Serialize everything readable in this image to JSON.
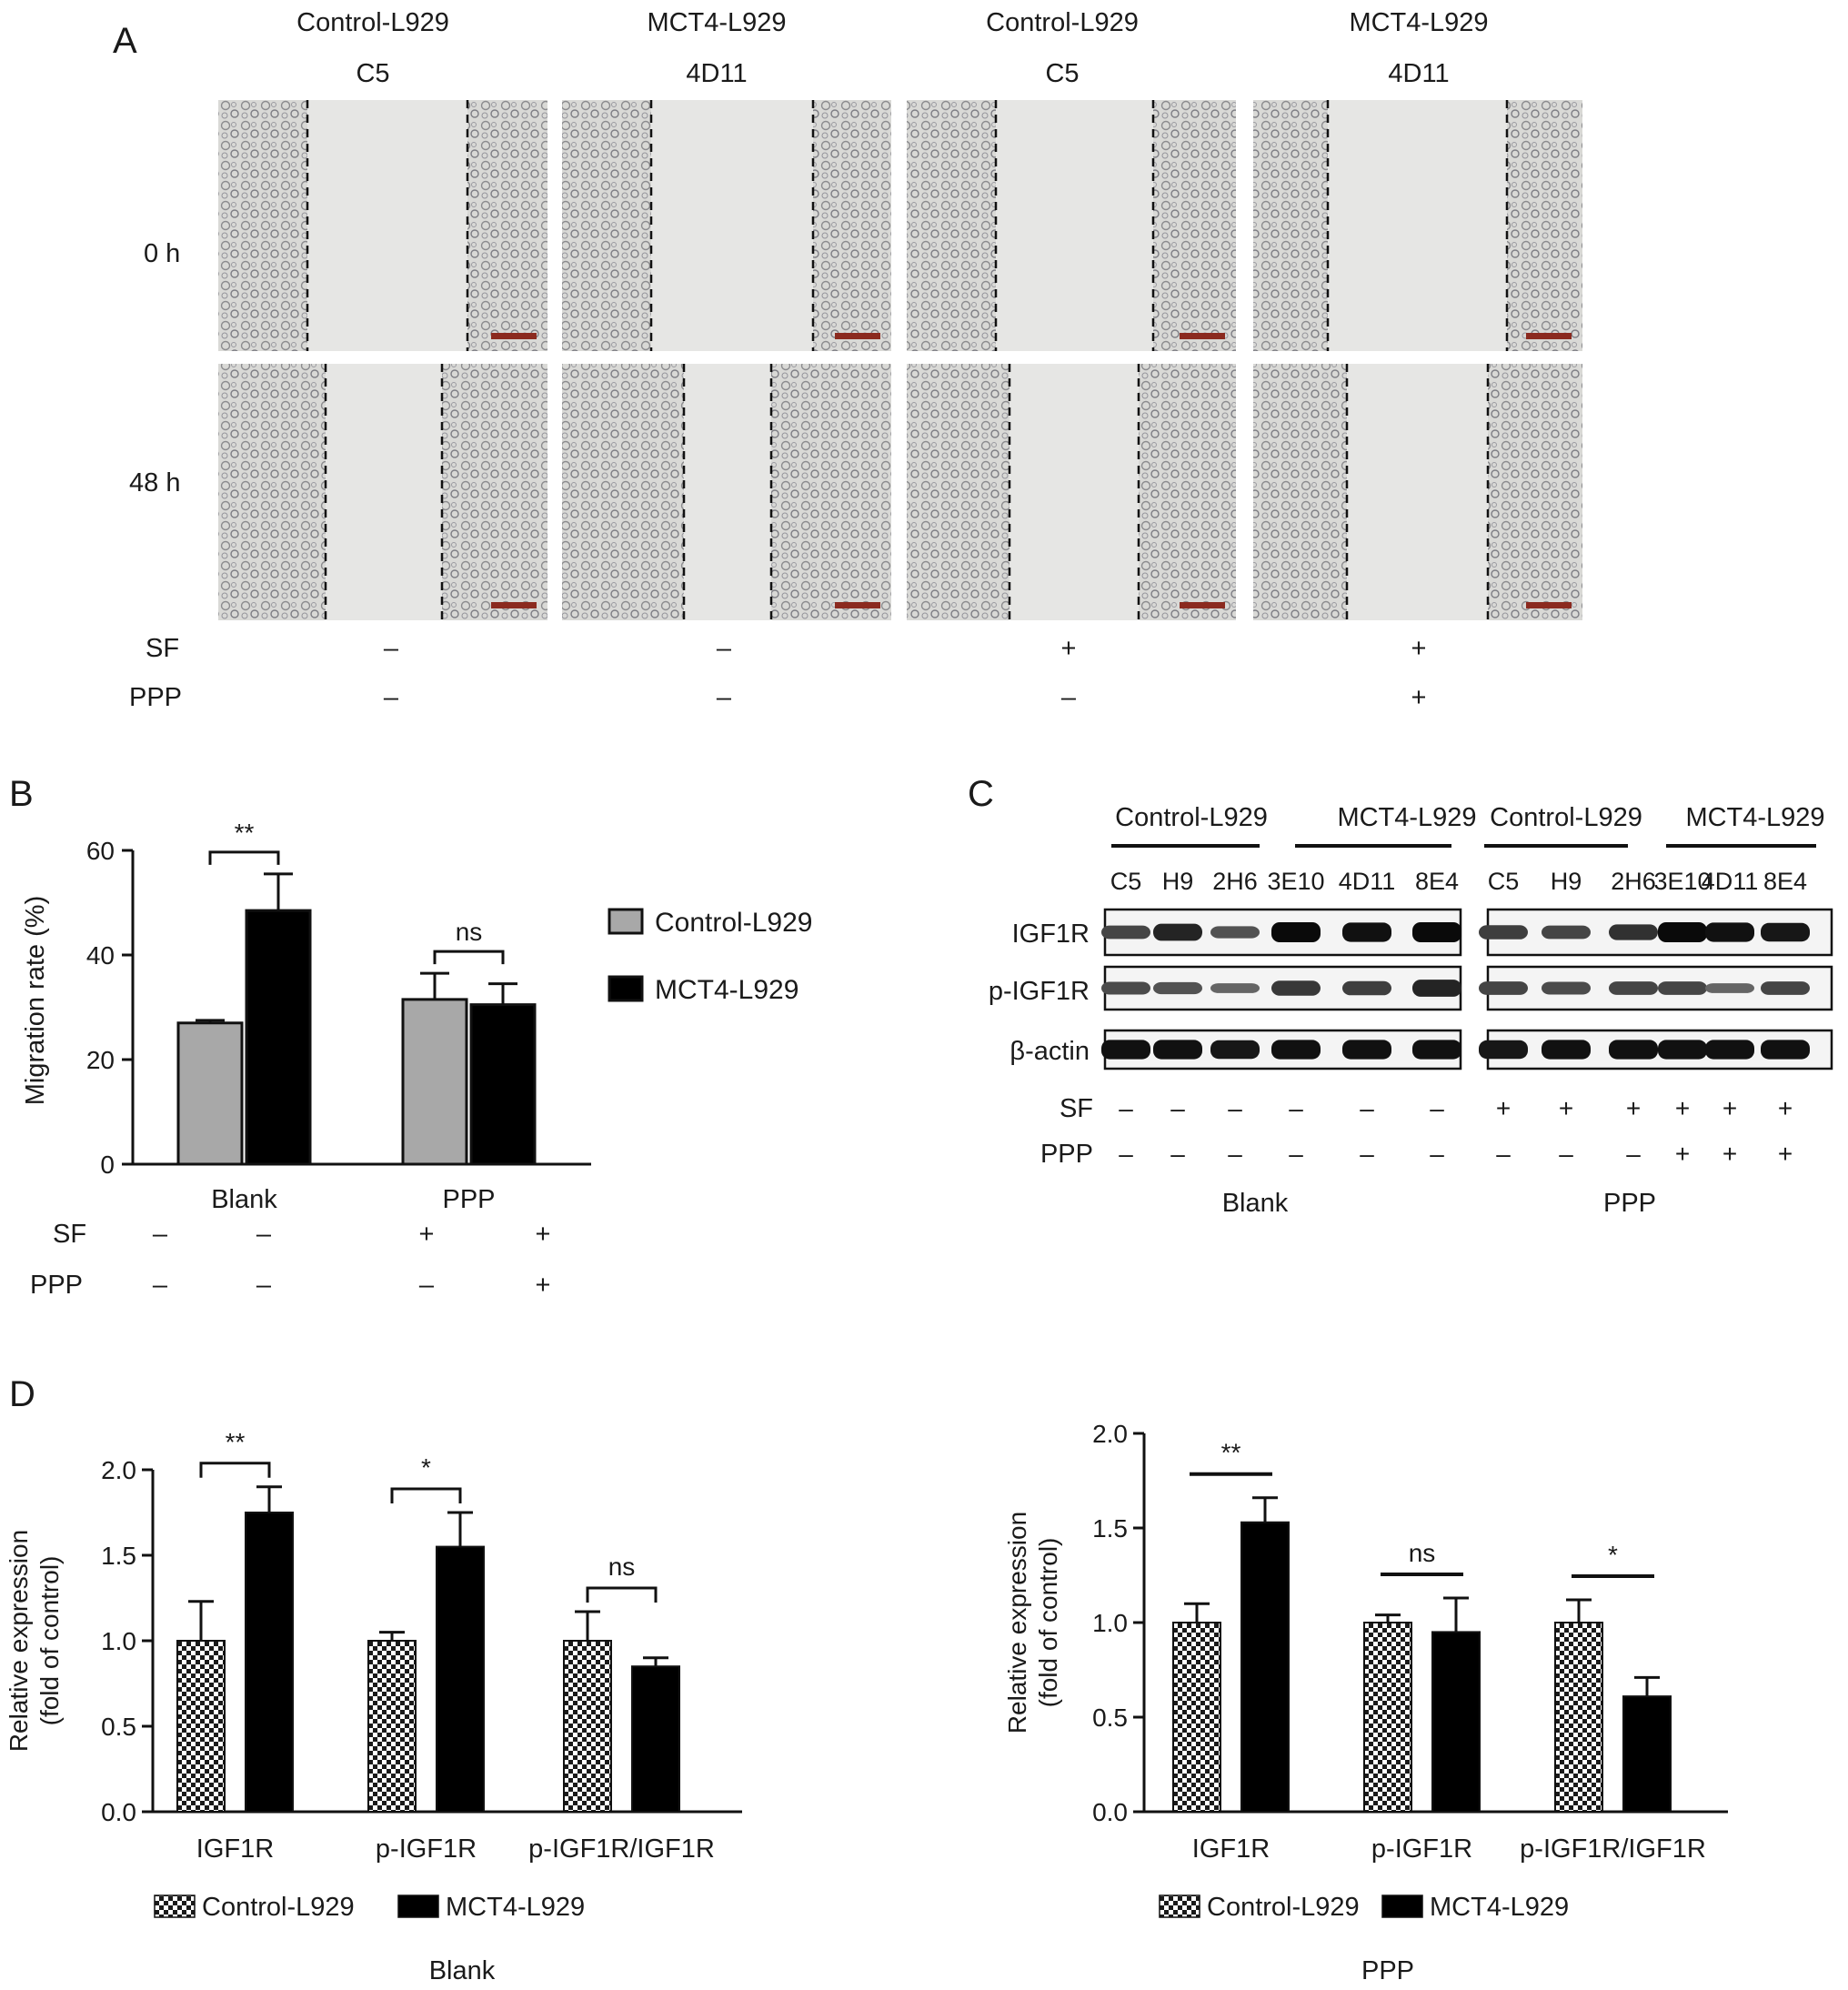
{
  "panel_labels": [
    "A",
    "B",
    "C",
    "D"
  ],
  "panel_a": {
    "group_titles": [
      "Control-L929",
      "MCT4-L929",
      "Control-L929",
      "MCT4-L929"
    ],
    "clone_labels": [
      "C5",
      "4D11",
      "C5",
      "4D11"
    ],
    "row_labels": [
      "0 h",
      "48 h"
    ],
    "treatment_rows": [
      {
        "label": "SF",
        "signs": [
          "–",
          "–",
          "+",
          "+"
        ]
      },
      {
        "label": "PPP",
        "signs": [
          "–",
          "–",
          "–",
          "+"
        ]
      }
    ],
    "background_color": "#e6e6e4"
  },
  "panel_b": {
    "chart_data": {
      "type": "bar",
      "ylabel": "Migration rate (%)",
      "ylim": [
        0,
        60
      ],
      "yticks": [
        0,
        20,
        40,
        60
      ],
      "categories": [
        "Blank",
        "PPP"
      ],
      "series": [
        {
          "name": "Control-L929",
          "color": "#a8a8a8",
          "values": [
            27,
            31.5
          ],
          "errors": [
            0.5,
            5
          ]
        },
        {
          "name": "MCT4-L929",
          "color": "#000000",
          "values": [
            48.5,
            30.5
          ],
          "errors": [
            7,
            4
          ]
        }
      ],
      "significance": [
        {
          "label": "**",
          "group": 0
        },
        {
          "label": "ns",
          "group": 1
        }
      ],
      "treatment_rows": [
        {
          "label": "SF",
          "signs": [
            "–",
            "–",
            "+",
            "+"
          ]
        },
        {
          "label": "PPP",
          "signs": [
            "–",
            "–",
            "–",
            "+"
          ]
        }
      ]
    }
  },
  "panel_c": {
    "groups": [
      {
        "title": "Control-L929",
        "section": 0
      },
      {
        "title": "MCT4-L929",
        "section": 0
      },
      {
        "title": "Control-L929",
        "section": 1
      },
      {
        "title": "MCT4-L929",
        "section": 1
      }
    ],
    "lanes": [
      "C5",
      "H9",
      "2H6",
      "3E10",
      "4D11",
      "8E4"
    ],
    "blots": [
      {
        "label": "IGF1R",
        "intensities": [
          [
            0.55,
            0.8,
            0.45,
            1.0,
            0.95,
            1.0
          ],
          [
            0.6,
            0.55,
            0.7,
            1.0,
            0.95,
            0.9
          ]
        ]
      },
      {
        "label": "p-IGF1R",
        "intensities": [
          [
            0.5,
            0.45,
            0.3,
            0.65,
            0.6,
            0.8
          ],
          [
            0.55,
            0.5,
            0.55,
            0.55,
            0.3,
            0.55
          ]
        ]
      },
      {
        "label": "β-actin",
        "intensities": [
          [
            0.95,
            0.95,
            0.9,
            0.95,
            0.95,
            0.95
          ],
          [
            0.9,
            0.95,
            0.95,
            0.95,
            0.95,
            0.95
          ]
        ]
      }
    ],
    "sf_label": "SF",
    "ppp_label": "PPP",
    "sf_signs": [
      [
        "–",
        "–",
        "–",
        "–",
        "–",
        "–"
      ],
      [
        "+",
        "+",
        "+",
        "+",
        "+",
        "+"
      ]
    ],
    "ppp_signs": [
      [
        "–",
        "–",
        "–",
        "–",
        "–",
        "–"
      ],
      [
        "–",
        "–",
        "–",
        "+",
        "+",
        "+"
      ]
    ],
    "section_labels": [
      "Blank",
      "PPP"
    ]
  },
  "panel_d": {
    "chart_data": [
      {
        "type": "bar",
        "ylabel": [
          "Relative expression",
          "(fold of control)"
        ],
        "ylim": [
          0,
          2.0
        ],
        "yticks": [
          "0.0",
          "0.5",
          "1.0",
          "1.5",
          "2.0"
        ],
        "categories": [
          "IGF1R",
          "p-IGF1R",
          "p-IGF1R/IGF1R"
        ],
        "series": [
          {
            "name": "Control-L929",
            "pattern": "checker",
            "values": [
              1.0,
              1.0,
              1.0
            ],
            "errors": [
              0.23,
              0.05,
              0.17
            ]
          },
          {
            "name": "MCT4-L929",
            "color": "#000000",
            "values": [
              1.75,
              1.55,
              0.85
            ],
            "errors": [
              0.15,
              0.2,
              0.05
            ]
          }
        ],
        "significance": [
          "**",
          "*",
          "ns"
        ],
        "caption": "Blank"
      },
      {
        "type": "bar",
        "ylabel": [
          "Relative expression",
          "(fold of control)"
        ],
        "ylim": [
          0,
          2.0
        ],
        "yticks": [
          "0.0",
          "0.5",
          "1.0",
          "1.5",
          "2.0"
        ],
        "categories": [
          "IGF1R",
          "p-IGF1R",
          "p-IGF1R/IGF1R"
        ],
        "series": [
          {
            "name": "Control-L929",
            "pattern": "checker",
            "values": [
              1.0,
              1.0,
              1.0
            ],
            "errors": [
              0.1,
              0.04,
              0.12
            ]
          },
          {
            "name": "MCT4-L929",
            "color": "#000000",
            "values": [
              1.53,
              0.95,
              0.61
            ],
            "errors": [
              0.13,
              0.18,
              0.1
            ]
          }
        ],
        "significance": [
          "**",
          "ns",
          "*"
        ],
        "caption": "PPP"
      }
    ]
  }
}
